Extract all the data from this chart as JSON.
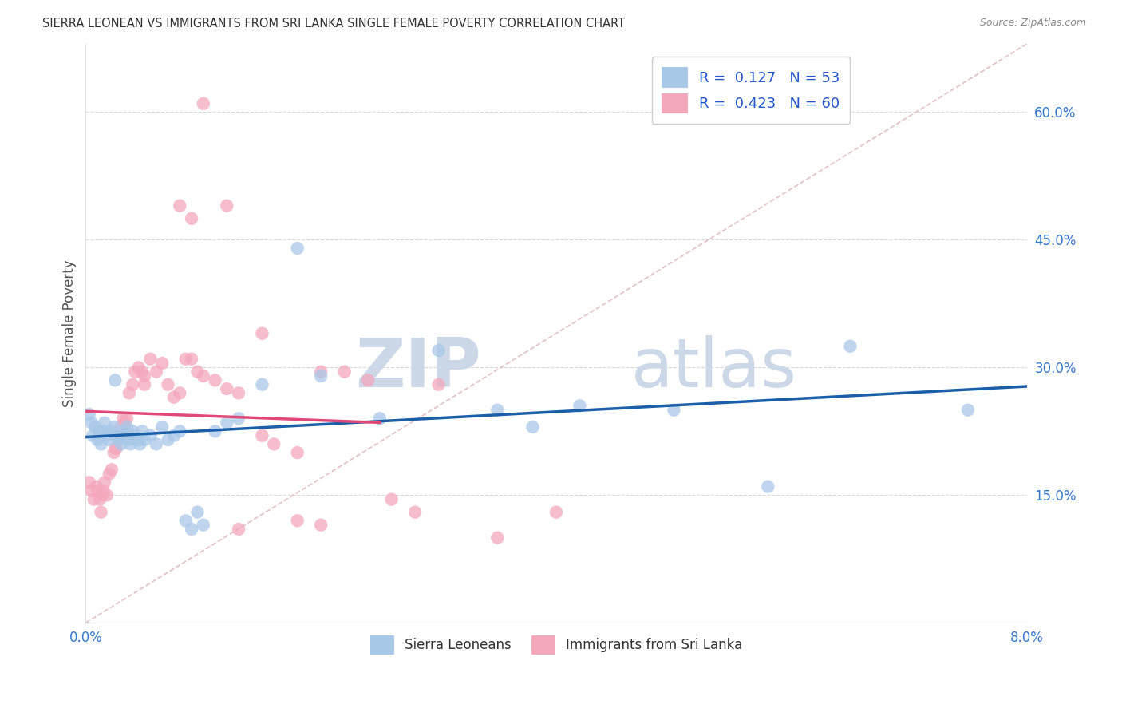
{
  "title": "SIERRA LEONEAN VS IMMIGRANTS FROM SRI LANKA SINGLE FEMALE POVERTY CORRELATION CHART",
  "source": "Source: ZipAtlas.com",
  "ylabel": "Single Female Poverty",
  "xmin": 0.0,
  "xmax": 0.08,
  "ymin": 0.0,
  "ymax": 0.68,
  "x_ticks": [
    0.0,
    0.02,
    0.04,
    0.06,
    0.08
  ],
  "x_tick_labels": [
    "0.0%",
    "",
    "",
    "",
    "8.0%"
  ],
  "y_ticks_right": [
    0.15,
    0.3,
    0.45,
    0.6
  ],
  "y_tick_labels_right": [
    "15.0%",
    "30.0%",
    "45.0%",
    "60.0%"
  ],
  "blue_label": "Sierra Leoneans",
  "pink_label": "Immigrants from Sri Lanka",
  "blue_R": "0.127",
  "blue_N": "53",
  "pink_R": "0.423",
  "pink_N": "60",
  "blue_color": "#a8c8e8",
  "pink_color": "#f4a8bc",
  "blue_line_color": "#1a5fa8",
  "pink_line_color": "#e04878",
  "ref_line_color": "#e0b8c0",
  "grid_color": "#d8d8d8",
  "watermark_zip": "ZIP",
  "watermark_atlas": "atlas",
  "watermark_color": "#ccd8e8",
  "blue_scatter_x": [
    0.0003,
    0.0005,
    0.0006,
    0.0008,
    0.001,
    0.0012,
    0.0013,
    0.0015,
    0.0016,
    0.0018,
    0.002,
    0.0022,
    0.0024,
    0.0025,
    0.0026,
    0.0028,
    0.003,
    0.0032,
    0.0033,
    0.0035,
    0.0036,
    0.0038,
    0.004,
    0.0042,
    0.0044,
    0.0046,
    0.0048,
    0.005,
    0.0055,
    0.006,
    0.0065,
    0.007,
    0.0075,
    0.008,
    0.0085,
    0.009,
    0.0095,
    0.01,
    0.011,
    0.012,
    0.013,
    0.015,
    0.018,
    0.02,
    0.025,
    0.03,
    0.035,
    0.038,
    0.042,
    0.05,
    0.058,
    0.065,
    0.075
  ],
  "blue_scatter_y": [
    0.245,
    0.235,
    0.22,
    0.23,
    0.215,
    0.225,
    0.21,
    0.225,
    0.235,
    0.22,
    0.215,
    0.225,
    0.23,
    0.285,
    0.22,
    0.215,
    0.21,
    0.225,
    0.22,
    0.23,
    0.215,
    0.21,
    0.225,
    0.22,
    0.215,
    0.21,
    0.225,
    0.215,
    0.22,
    0.21,
    0.23,
    0.215,
    0.22,
    0.225,
    0.12,
    0.11,
    0.13,
    0.115,
    0.225,
    0.235,
    0.24,
    0.28,
    0.44,
    0.29,
    0.24,
    0.32,
    0.25,
    0.23,
    0.255,
    0.25,
    0.16,
    0.325,
    0.25
  ],
  "pink_scatter_x": [
    0.0003,
    0.0005,
    0.0007,
    0.0009,
    0.001,
    0.0012,
    0.0013,
    0.0014,
    0.0015,
    0.0016,
    0.0018,
    0.002,
    0.0022,
    0.0024,
    0.0025,
    0.0026,
    0.0028,
    0.003,
    0.0032,
    0.0033,
    0.0035,
    0.0037,
    0.004,
    0.0042,
    0.0045,
    0.0048,
    0.005,
    0.0055,
    0.006,
    0.0065,
    0.007,
    0.0075,
    0.008,
    0.0085,
    0.009,
    0.0095,
    0.01,
    0.011,
    0.012,
    0.013,
    0.015,
    0.016,
    0.018,
    0.02,
    0.022,
    0.024,
    0.026,
    0.028,
    0.03,
    0.018,
    0.013,
    0.02,
    0.035,
    0.01,
    0.009,
    0.008,
    0.012,
    0.015,
    0.005,
    0.04
  ],
  "pink_scatter_y": [
    0.165,
    0.155,
    0.145,
    0.16,
    0.155,
    0.145,
    0.13,
    0.15,
    0.155,
    0.165,
    0.15,
    0.175,
    0.18,
    0.2,
    0.205,
    0.205,
    0.215,
    0.23,
    0.24,
    0.235,
    0.24,
    0.27,
    0.28,
    0.295,
    0.3,
    0.295,
    0.29,
    0.31,
    0.295,
    0.305,
    0.28,
    0.265,
    0.27,
    0.31,
    0.31,
    0.295,
    0.29,
    0.285,
    0.275,
    0.27,
    0.22,
    0.21,
    0.2,
    0.295,
    0.295,
    0.285,
    0.145,
    0.13,
    0.28,
    0.12,
    0.11,
    0.115,
    0.1,
    0.61,
    0.475,
    0.49,
    0.49,
    0.34,
    0.28,
    0.13
  ]
}
